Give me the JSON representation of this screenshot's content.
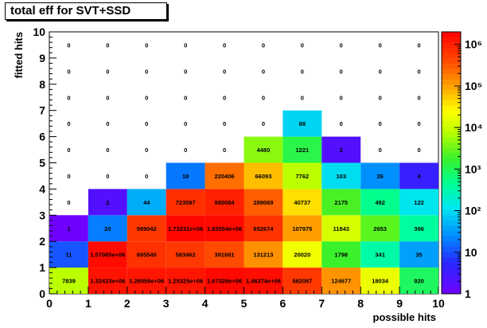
{
  "chart_data": {
    "type": "heatmap",
    "title": "total eff for SVT+SSD",
    "xlabel": "possible hits",
    "ylabel": "fitted hits",
    "xlim": [
      0,
      10
    ],
    "ylim": [
      0,
      10
    ],
    "color_scale": "log",
    "zlim": [
      1,
      2000000
    ],
    "x_ticks": [
      "0",
      "1",
      "2",
      "3",
      "4",
      "5",
      "6",
      "7",
      "8",
      "9",
      "10"
    ],
    "y_ticks": [
      "0",
      "1",
      "2",
      "3",
      "4",
      "5",
      "6",
      "7",
      "8",
      "9",
      "10"
    ],
    "z_ticks": [
      {
        "value": 1,
        "label": "1"
      },
      {
        "value": 10,
        "label": "10"
      },
      {
        "value": 100,
        "label": "10²"
      },
      {
        "value": 1000,
        "label": "10³"
      },
      {
        "value": 10000,
        "label": "10⁴"
      },
      {
        "value": 100000,
        "label": "10⁵"
      },
      {
        "value": 1000000,
        "label": "10⁶"
      }
    ],
    "cells": [
      {
        "x": 0,
        "y": 0,
        "value": 7839,
        "label": "7839"
      },
      {
        "x": 1,
        "y": 0,
        "value": 1324230,
        "label": "1.32423e+06"
      },
      {
        "x": 2,
        "y": 0,
        "value": 1260580,
        "label": "1.26058e+06"
      },
      {
        "x": 3,
        "y": 0,
        "value": 1253250,
        "label": "1.25325e+06"
      },
      {
        "x": 4,
        "y": 0,
        "value": 1673280,
        "label": "1.67328e+06"
      },
      {
        "x": 5,
        "y": 0,
        "value": 1463740,
        "label": "1.46374e+06"
      },
      {
        "x": 6,
        "y": 0,
        "value": 582087,
        "label": "582087"
      },
      {
        "x": 7,
        "y": 0,
        "value": 124677,
        "label": "124677"
      },
      {
        "x": 8,
        "y": 0,
        "value": 18034,
        "label": "18034"
      },
      {
        "x": 9,
        "y": 0,
        "value": 920,
        "label": "920"
      },
      {
        "x": 0,
        "y": 1,
        "value": 11,
        "label": "11"
      },
      {
        "x": 1,
        "y": 1,
        "value": 1570650,
        "label": "1.57065e+06"
      },
      {
        "x": 2,
        "y": 1,
        "value": 695540,
        "label": "695540"
      },
      {
        "x": 3,
        "y": 1,
        "value": 583462,
        "label": "583462"
      },
      {
        "x": 4,
        "y": 1,
        "value": 391681,
        "label": "391681"
      },
      {
        "x": 5,
        "y": 1,
        "value": 131213,
        "label": "131213"
      },
      {
        "x": 6,
        "y": 1,
        "value": 20020,
        "label": "20020"
      },
      {
        "x": 7,
        "y": 1,
        "value": 1798,
        "label": "1798"
      },
      {
        "x": 8,
        "y": 1,
        "value": 341,
        "label": "341"
      },
      {
        "x": 9,
        "y": 1,
        "value": 35,
        "label": "35"
      },
      {
        "x": 0,
        "y": 2,
        "value": 1,
        "label": "1"
      },
      {
        "x": 1,
        "y": 2,
        "value": 20,
        "label": "20"
      },
      {
        "x": 2,
        "y": 2,
        "value": 599042,
        "label": "599042"
      },
      {
        "x": 3,
        "y": 2,
        "value": 1732310,
        "label": "1.73231e+06"
      },
      {
        "x": 4,
        "y": 2,
        "value": 1655540,
        "label": "1.65554e+06"
      },
      {
        "x": 5,
        "y": 2,
        "value": 652674,
        "label": "652674"
      },
      {
        "x": 6,
        "y": 2,
        "value": 107975,
        "label": "107975"
      },
      {
        "x": 7,
        "y": 2,
        "value": 11843,
        "label": "11843"
      },
      {
        "x": 8,
        "y": 2,
        "value": 2653,
        "label": "2653"
      },
      {
        "x": 9,
        "y": 2,
        "value": 396,
        "label": "396"
      },
      {
        "x": 0,
        "y": 3,
        "value": 0,
        "label": "0"
      },
      {
        "x": 1,
        "y": 3,
        "value": 2,
        "label": "2"
      },
      {
        "x": 2,
        "y": 3,
        "value": 44,
        "label": "44"
      },
      {
        "x": 3,
        "y": 3,
        "value": 723597,
        "label": "723597"
      },
      {
        "x": 4,
        "y": 3,
        "value": 980084,
        "label": "980084"
      },
      {
        "x": 5,
        "y": 3,
        "value": 289069,
        "label": "289069"
      },
      {
        "x": 6,
        "y": 3,
        "value": 40737,
        "label": "40737"
      },
      {
        "x": 7,
        "y": 3,
        "value": 2175,
        "label": "2175"
      },
      {
        "x": 8,
        "y": 3,
        "value": 492,
        "label": "492"
      },
      {
        "x": 9,
        "y": 3,
        "value": 122,
        "label": "122"
      },
      {
        "x": 0,
        "y": 4,
        "value": 0,
        "label": "0"
      },
      {
        "x": 1,
        "y": 4,
        "value": 0,
        "label": "0"
      },
      {
        "x": 2,
        "y": 4,
        "value": 0,
        "label": "0"
      },
      {
        "x": 3,
        "y": 4,
        "value": 18,
        "label": "18"
      },
      {
        "x": 4,
        "y": 4,
        "value": 220406,
        "label": "220406"
      },
      {
        "x": 5,
        "y": 4,
        "value": 66093,
        "label": "66093"
      },
      {
        "x": 6,
        "y": 4,
        "value": 7762,
        "label": "7762"
      },
      {
        "x": 7,
        "y": 4,
        "value": 103,
        "label": "103"
      },
      {
        "x": 8,
        "y": 4,
        "value": 26,
        "label": "26"
      },
      {
        "x": 9,
        "y": 4,
        "value": 4,
        "label": "4"
      },
      {
        "x": 0,
        "y": 5,
        "value": 0,
        "label": "0"
      },
      {
        "x": 1,
        "y": 5,
        "value": 0,
        "label": "0"
      },
      {
        "x": 2,
        "y": 5,
        "value": 0,
        "label": "0"
      },
      {
        "x": 3,
        "y": 5,
        "value": 0,
        "label": "0"
      },
      {
        "x": 4,
        "y": 5,
        "value": 0,
        "label": "0"
      },
      {
        "x": 5,
        "y": 5,
        "value": 4480,
        "label": "4480"
      },
      {
        "x": 6,
        "y": 5,
        "value": 1221,
        "label": "1221"
      },
      {
        "x": 7,
        "y": 5,
        "value": 2,
        "label": "2"
      },
      {
        "x": 8,
        "y": 5,
        "value": 0,
        "label": "0"
      },
      {
        "x": 9,
        "y": 5,
        "value": 0,
        "label": "0"
      },
      {
        "x": 0,
        "y": 6,
        "value": 0,
        "label": "0"
      },
      {
        "x": 1,
        "y": 6,
        "value": 0,
        "label": "0"
      },
      {
        "x": 2,
        "y": 6,
        "value": 0,
        "label": "0"
      },
      {
        "x": 3,
        "y": 6,
        "value": 0,
        "label": "0"
      },
      {
        "x": 4,
        "y": 6,
        "value": 0,
        "label": "0"
      },
      {
        "x": 5,
        "y": 6,
        "value": 0,
        "label": "0"
      },
      {
        "x": 6,
        "y": 6,
        "value": 88,
        "label": "88"
      },
      {
        "x": 7,
        "y": 6,
        "value": 0,
        "label": "0"
      },
      {
        "x": 8,
        "y": 6,
        "value": 0,
        "label": "0"
      },
      {
        "x": 9,
        "y": 6,
        "value": 0,
        "label": "0"
      },
      {
        "x": 0,
        "y": 7,
        "value": 0,
        "label": "0"
      },
      {
        "x": 1,
        "y": 7,
        "value": 0,
        "label": "0"
      },
      {
        "x": 2,
        "y": 7,
        "value": 0,
        "label": "0"
      },
      {
        "x": 3,
        "y": 7,
        "value": 0,
        "label": "0"
      },
      {
        "x": 4,
        "y": 7,
        "value": 0,
        "label": "0"
      },
      {
        "x": 5,
        "y": 7,
        "value": 0,
        "label": "0"
      },
      {
        "x": 6,
        "y": 7,
        "value": 0,
        "label": "0"
      },
      {
        "x": 7,
        "y": 7,
        "value": 0,
        "label": "0"
      },
      {
        "x": 8,
        "y": 7,
        "value": 0,
        "label": "0"
      },
      {
        "x": 9,
        "y": 7,
        "value": 0,
        "label": "0"
      },
      {
        "x": 0,
        "y": 8,
        "value": 0,
        "label": "0"
      },
      {
        "x": 1,
        "y": 8,
        "value": 0,
        "label": "0"
      },
      {
        "x": 2,
        "y": 8,
        "value": 0,
        "label": "0"
      },
      {
        "x": 3,
        "y": 8,
        "value": 0,
        "label": "0"
      },
      {
        "x": 4,
        "y": 8,
        "value": 0,
        "label": "0"
      },
      {
        "x": 5,
        "y": 8,
        "value": 0,
        "label": "0"
      },
      {
        "x": 6,
        "y": 8,
        "value": 0,
        "label": "0"
      },
      {
        "x": 7,
        "y": 8,
        "value": 0,
        "label": "0"
      },
      {
        "x": 8,
        "y": 8,
        "value": 0,
        "label": "0"
      },
      {
        "x": 9,
        "y": 8,
        "value": 0,
        "label": "0"
      },
      {
        "x": 0,
        "y": 9,
        "value": 0,
        "label": "0"
      },
      {
        "x": 1,
        "y": 9,
        "value": 0,
        "label": "0"
      },
      {
        "x": 2,
        "y": 9,
        "value": 0,
        "label": "0"
      },
      {
        "x": 3,
        "y": 9,
        "value": 0,
        "label": "0"
      },
      {
        "x": 4,
        "y": 9,
        "value": 0,
        "label": "0"
      },
      {
        "x": 5,
        "y": 9,
        "value": 0,
        "label": "0"
      },
      {
        "x": 6,
        "y": 9,
        "value": 0,
        "label": "0"
      },
      {
        "x": 7,
        "y": 9,
        "value": 0,
        "label": "0"
      },
      {
        "x": 8,
        "y": 9,
        "value": 0,
        "label": "0"
      },
      {
        "x": 9,
        "y": 9,
        "value": 0,
        "label": "0"
      }
    ]
  }
}
